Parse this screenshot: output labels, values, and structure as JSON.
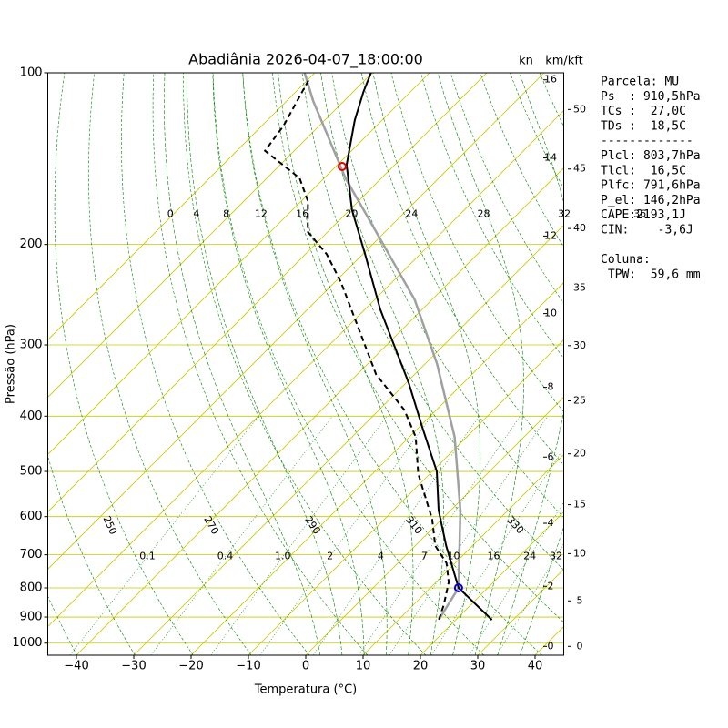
{
  "chart_data": {
    "type": "skewt",
    "title": "Abadiânia 2026-04-07_18:00:00",
    "xlabel": "Temperatura (°C)",
    "ylabel": "Pressão (hPa)",
    "xlim": [
      -45,
      45
    ],
    "ylim": [
      1050,
      100
    ],
    "skew_deg": 45,
    "xticks": [
      {
        "value": -40,
        "label": "−40"
      },
      {
        "value": -30,
        "label": "−30"
      },
      {
        "value": -20,
        "label": "−20"
      },
      {
        "value": -10,
        "label": "−10"
      },
      0,
      10,
      20,
      30,
      40
    ],
    "yticks": [
      100,
      200,
      300,
      400,
      500,
      600,
      700,
      800,
      900,
      1000
    ],
    "isotherms": [
      -100,
      -90,
      -80,
      -70,
      -60,
      -50,
      -40,
      -30,
      -20,
      -10,
      0,
      10,
      20,
      30,
      40
    ],
    "grid_color": "#c8c800",
    "adiabat_color": "#008000",
    "dry_adiabats": [
      230,
      240,
      250,
      260,
      270,
      280,
      290,
      300,
      310,
      320,
      330,
      340,
      350,
      360,
      370,
      380,
      390,
      400,
      410,
      420,
      430,
      440,
      450
    ],
    "dry_adiabat_labels": [
      250,
      270,
      290,
      310,
      330
    ],
    "moist_adiabats": [
      0,
      4,
      8,
      12,
      16,
      20,
      24,
      28,
      32,
      36
    ],
    "mixing_ratios": [
      0.1,
      0.4,
      {
        "value": 1,
        "label": "1.0"
      },
      2,
      4,
      7,
      10,
      16,
      24,
      32
    ],
    "temperature": {
      "color": "#000000",
      "pressure": [
        910,
        800,
        675,
        585,
        500,
        420,
        350,
        260,
        208,
        174,
        145,
        121,
        108,
        100
      ],
      "values": [
        26.3,
        14.9,
        5.4,
        -2.1,
        -9.2,
        -19.2,
        -29.5,
        -47.3,
        -59.6,
        -69.6,
        -78.4,
        -84.8,
        -88.2,
        -90.2
      ]
    },
    "dewpoint": {
      "color": "#000000",
      "pressure": [
        909,
        857,
        782,
        724,
        675,
        606,
        505,
        435,
        390,
        338,
        270,
        233,
        208,
        190,
        168,
        153,
        137,
        124,
        102
      ],
      "values": [
        17.0,
        15.3,
        12.2,
        8.5,
        3.5,
        -1.7,
        -12.0,
        -18.9,
        -25.6,
        -36.7,
        -50.1,
        -58.9,
        -66.3,
        -73.5,
        -78.8,
        -84.3,
        -95.1,
        -96.2,
        -100
      ]
    },
    "parcel": {
      "color": "#a0a0a0",
      "pressure": [
        909,
        800,
        585,
        435,
        324,
        250,
        200,
        153,
        112,
        100
      ],
      "values": [
        17.0,
        14.9,
        1.7,
        -12.1,
        -27.9,
        -43,
        -58.1,
        -76.3,
        -95.4,
        -101.8
      ]
    },
    "markers": [
      {
        "pressure": 146,
        "temperature": -78.9,
        "color": "#e00000"
      },
      {
        "pressure": 800,
        "temperature": 14.9,
        "color": "#0000e0"
      }
    ],
    "wind_unit": "kn",
    "height_unit": "km/kft",
    "km_ticks": [
      0,
      2,
      4,
      6,
      8,
      10,
      12,
      14,
      16
    ],
    "kft_ticks": [
      0,
      5,
      10,
      15,
      20,
      25,
      30,
      35,
      40,
      45,
      50
    ],
    "info": [
      "Parcela: MU",
      "Ps  : 910,5hPa",
      "TCs :  27,0C",
      "TDs :  18,5C",
      "-------------",
      "Plcl: 803,7hPa",
      "Tlcl:  16,5C",
      "Plfc: 791,6hPa",
      "P_el: 146,2hPa",
      "CAPE:2193,1J",
      "CIN:    -3,6J",
      "Coluna:",
      " TPW:  59,6 mm"
    ]
  }
}
